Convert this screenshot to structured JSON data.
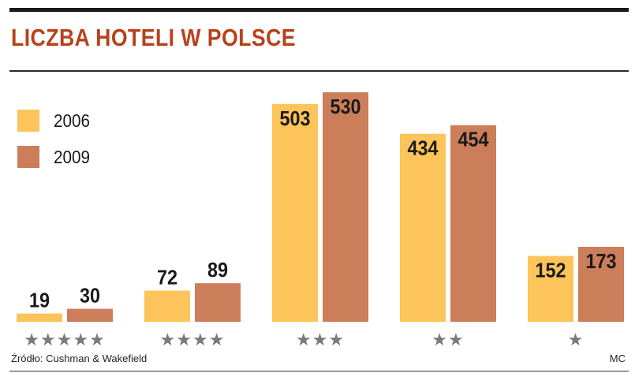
{
  "header": {
    "title": "LICZBA HOTELI W POLSCE"
  },
  "footer": {
    "source": "Źródło: Cushman & Wakefield",
    "credit": "MC"
  },
  "colors": {
    "series_2006": "#fcc45a",
    "series_2009": "#cc7d59",
    "stars": "#7a7a7a",
    "title": "#b8411c"
  },
  "chart_data": {
    "type": "bar",
    "title": "LICZBA HOTELI W POLSCE",
    "categories": [
      "★★★★★",
      "★★★★",
      "★★★",
      "★★",
      "★"
    ],
    "series": [
      {
        "name": "2006",
        "values": [
          19,
          72,
          503,
          434,
          152
        ]
      },
      {
        "name": "2009",
        "values": [
          30,
          89,
          530,
          454,
          173
        ]
      }
    ],
    "xlabel": "",
    "ylabel": "",
    "ylim": [
      0,
      550
    ],
    "grid": false,
    "legend": "top-left"
  }
}
